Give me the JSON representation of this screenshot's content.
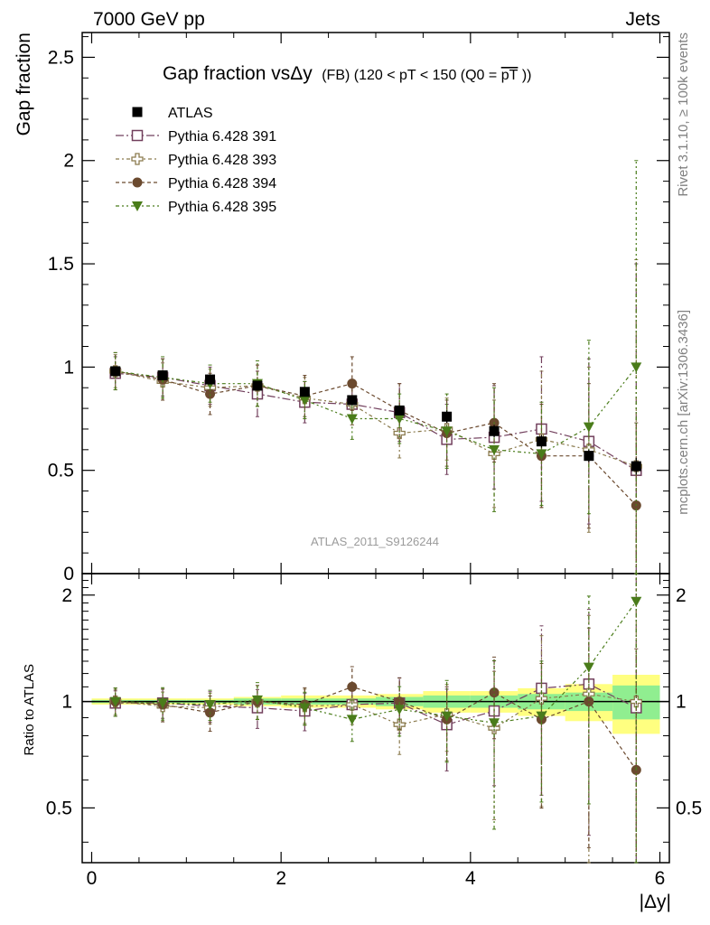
{
  "header": {
    "left": "7000 GeV pp",
    "right": "Jets"
  },
  "side_labels": {
    "rivet": "Rivet 3.1.10, ≥ 100k events",
    "mcplots": "mcplots.cern.ch [arXiv:1306.3436]"
  },
  "watermark": "ATLAS_2011_S9126244",
  "chart_data": {
    "type": "scatter",
    "title": "Gap fraction vsΔy (FB) (120 < pT < 150 (Q0 = pT))",
    "title_parts": {
      "main": "Gap fraction vsΔy",
      "sub_prefix": "(FB) (120 < pT < 150 (Q0 =",
      "sub_overline": "pT",
      "sub_suffix": "))"
    },
    "xlabel": "|Δy|",
    "ylabel": "Gap fraction",
    "ratio_ylabel": "Ratio to ATLAS",
    "xlim": [
      -0.1,
      6.1
    ],
    "ylim": [
      0,
      2.62
    ],
    "ratio_ylim": [
      0.35,
      2.3
    ],
    "x_ticks": [
      "0",
      "2",
      "4",
      "6"
    ],
    "y_ticks": [
      "0",
      "0.5",
      "1",
      "1.5",
      "2",
      "2.5"
    ],
    "ratio_y_ticks": [
      "0.5",
      "1",
      "2"
    ],
    "legend_position": "top-left",
    "x": [
      0.25,
      0.75,
      1.25,
      1.75,
      2.25,
      2.75,
      3.25,
      3.75,
      4.25,
      4.75,
      5.25,
      5.75
    ],
    "series": [
      {
        "name": "ATLAS",
        "color": "#000000",
        "marker": "filled-square",
        "values": [
          0.98,
          0.96,
          0.94,
          0.91,
          0.88,
          0.84,
          0.79,
          0.76,
          0.69,
          0.64,
          0.57,
          0.52
        ],
        "errors": [
          0.02,
          0.02,
          0.02,
          0.02,
          0.02,
          0.02,
          0.02,
          0.03,
          0.03,
          0.03,
          0.03,
          0.04
        ],
        "ratio_band_stat": [
          0.01,
          0.01,
          0.01,
          0.02,
          0.02,
          0.02,
          0.03,
          0.04,
          0.04,
          0.05,
          0.06,
          0.11
        ],
        "ratio_band_total": [
          0.02,
          0.02,
          0.02,
          0.03,
          0.04,
          0.04,
          0.05,
          0.07,
          0.07,
          0.09,
          0.12,
          0.19
        ]
      },
      {
        "name": "Pythia 6.428 391",
        "color": "#72405d",
        "marker": "open-square",
        "dash": "9,3,2,3",
        "values": [
          0.97,
          0.95,
          0.91,
          0.87,
          0.83,
          0.82,
          0.78,
          0.65,
          0.66,
          0.7,
          0.64,
          0.5
        ],
        "errors": [
          0.08,
          0.09,
          0.09,
          0.11,
          0.1,
          0.1,
          0.14,
          0.17,
          0.25,
          0.35,
          0.4,
          1.0
        ],
        "ratio": [
          0.99,
          0.99,
          0.97,
          0.96,
          0.94,
          0.98,
          0.99,
          0.86,
          0.94,
          1.09,
          1.12,
          0.96
        ]
      },
      {
        "name": "Pythia 6.428 393",
        "color": "#8b7b4e",
        "marker": "open-cross",
        "dash": "4,3,2,3",
        "values": [
          0.98,
          0.93,
          0.9,
          0.91,
          0.85,
          0.82,
          0.68,
          0.7,
          0.58,
          0.65,
          0.6,
          0.52
        ],
        "errors": [
          0.08,
          0.09,
          0.09,
          0.1,
          0.1,
          0.1,
          0.12,
          0.15,
          0.26,
          0.33,
          0.4,
          1.0
        ],
        "ratio": [
          1.0,
          0.97,
          0.96,
          1.0,
          0.97,
          0.98,
          0.86,
          0.92,
          0.84,
          1.02,
          1.05,
          1.0
        ]
      },
      {
        "name": "Pythia 6.428 394",
        "color": "#6b4a2f",
        "marker": "filled-circle",
        "dash": "4,3",
        "values": [
          0.98,
          0.94,
          0.87,
          0.91,
          0.86,
          0.92,
          0.79,
          0.68,
          0.73,
          0.57,
          0.57,
          0.33
        ],
        "errors": [
          0.09,
          0.1,
          0.1,
          0.1,
          0.1,
          0.13,
          0.13,
          0.16,
          0.19,
          0.25,
          0.35,
          0.4
        ],
        "ratio": [
          1.0,
          0.98,
          0.93,
          1.0,
          0.98,
          1.1,
          1.0,
          0.89,
          1.06,
          0.89,
          1.0,
          0.64
        ]
      },
      {
        "name": "Pythia 6.428 395",
        "color": "#4a7c1a",
        "marker": "filled-triangle-down",
        "dash": "4,3,2,3,2,3",
        "values": [
          0.98,
          0.95,
          0.92,
          0.92,
          0.84,
          0.75,
          0.75,
          0.69,
          0.6,
          0.58,
          0.71,
          1.0
        ],
        "errors": [
          0.09,
          0.1,
          0.09,
          0.11,
          0.09,
          0.1,
          0.12,
          0.18,
          0.3,
          0.25,
          0.42,
          1.0
        ],
        "ratio": [
          1.0,
          0.99,
          0.98,
          1.01,
          0.96,
          0.89,
          0.95,
          0.91,
          0.87,
          0.91,
          1.25,
          1.92
        ]
      }
    ]
  }
}
